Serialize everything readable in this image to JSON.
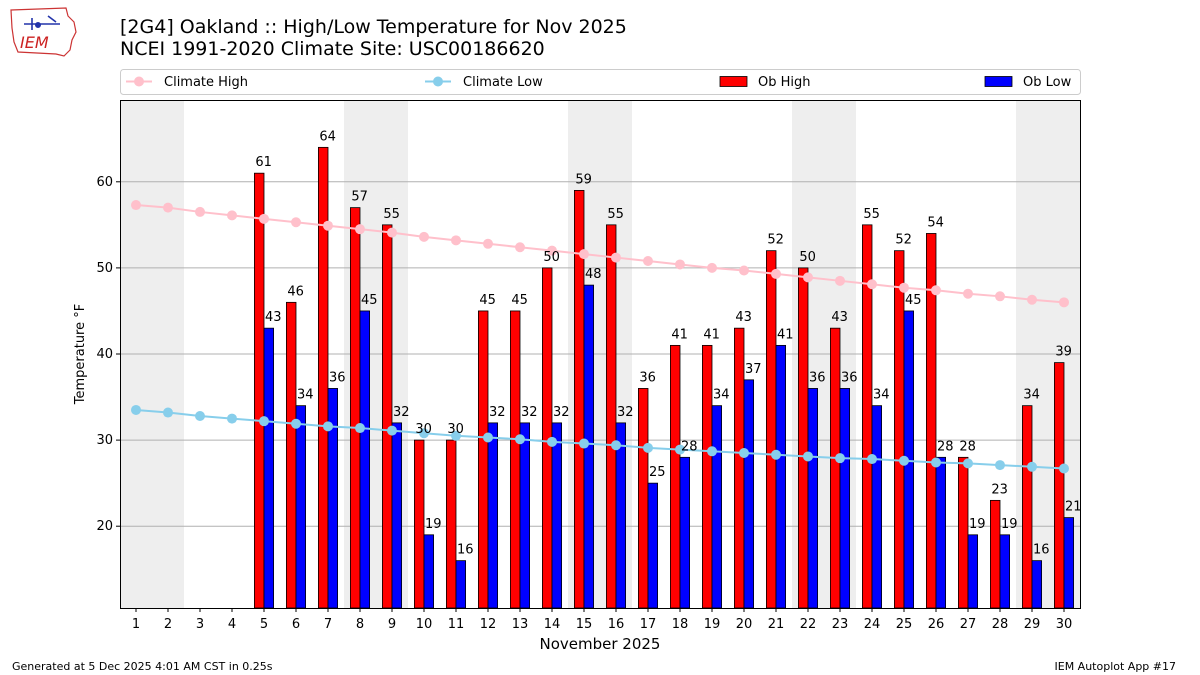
{
  "header": {
    "title_line1": "[2G4] Oakland :: High/Low Temperature for Nov 2025",
    "title_line2": "NCEI 1991-2020 Climate Site: USC00186620"
  },
  "logo": {
    "text": "IEM"
  },
  "footer": {
    "generated": "Generated at 5 Dec 2025 4:01 AM CST in 0.25s",
    "app": "IEM Autoplot App #17"
  },
  "colors": {
    "ob_high": "#ff0000",
    "ob_low": "#0000ff",
    "climate_high": "#ffc0cb",
    "climate_low": "#87ceeb",
    "weekend_band": "#eeeeee"
  },
  "chart_data": {
    "type": "bar",
    "xlabel": "November 2025",
    "ylabel": "Temperature °F",
    "ylim": [
      10.5,
      69.5
    ],
    "xlim": [
      0.5,
      30.5
    ],
    "yticks": [
      20,
      30,
      40,
      50,
      60
    ],
    "grid": "horizontal",
    "legend_position": "top",
    "categories": [
      1,
      2,
      3,
      4,
      5,
      6,
      7,
      8,
      9,
      10,
      11,
      12,
      13,
      14,
      15,
      16,
      17,
      18,
      19,
      20,
      21,
      22,
      23,
      24,
      25,
      26,
      27,
      28,
      29,
      30
    ],
    "weekend_bands": [
      [
        1,
        2
      ],
      [
        8,
        9
      ],
      [
        15,
        16
      ],
      [
        22,
        23
      ],
      [
        29,
        30
      ]
    ],
    "legend": [
      "Climate High",
      "Climate Low",
      "Ob High",
      "Ob Low"
    ],
    "series": [
      {
        "name": "Ob High",
        "kind": "bar",
        "values": [
          null,
          null,
          null,
          null,
          61,
          46,
          64,
          57,
          55,
          30,
          30,
          45,
          45,
          50,
          59,
          55,
          36,
          41,
          41,
          43,
          52,
          50,
          43,
          55,
          52,
          54,
          28,
          23,
          34,
          39
        ]
      },
      {
        "name": "Ob Low",
        "kind": "bar",
        "values": [
          null,
          null,
          null,
          null,
          43,
          34,
          36,
          45,
          32,
          19,
          16,
          32,
          32,
          32,
          48,
          32,
          25,
          28,
          34,
          37,
          41,
          36,
          36,
          34,
          45,
          28,
          19,
          19,
          16,
          21
        ]
      },
      {
        "name": "Climate High",
        "kind": "line",
        "values": [
          57.3,
          57.0,
          56.5,
          56.1,
          55.7,
          55.3,
          54.9,
          54.5,
          54.1,
          53.6,
          53.2,
          52.8,
          52.4,
          52.0,
          51.6,
          51.2,
          50.8,
          50.4,
          50.0,
          49.7,
          49.3,
          48.9,
          48.5,
          48.1,
          47.7,
          47.4,
          47.0,
          46.7,
          46.3,
          46.0
        ]
      },
      {
        "name": "Climate Low",
        "kind": "line",
        "values": [
          33.5,
          33.2,
          32.8,
          32.5,
          32.2,
          31.9,
          31.6,
          31.4,
          31.1,
          30.8,
          30.5,
          30.3,
          30.1,
          29.8,
          29.6,
          29.4,
          29.1,
          28.9,
          28.7,
          28.5,
          28.3,
          28.1,
          27.9,
          27.8,
          27.6,
          27.4,
          27.3,
          27.1,
          26.9,
          26.7
        ]
      }
    ]
  }
}
